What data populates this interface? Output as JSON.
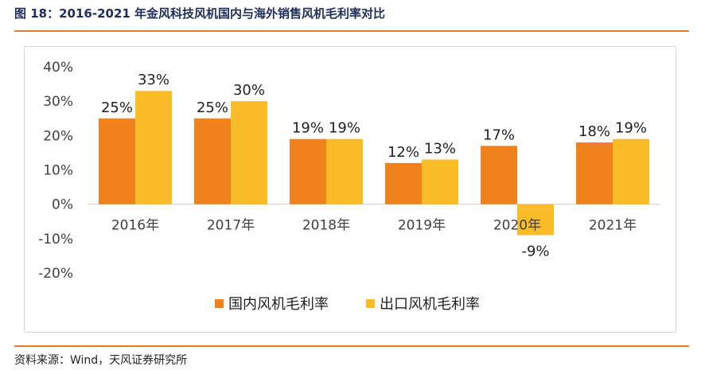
{
  "figure": {
    "title": "图 18：2016-2021 年金风科技风机国内与海外销售风机毛利率对比",
    "source": "资料来源：Wind，天风证券研究所"
  },
  "chart_data": {
    "type": "bar",
    "title": "",
    "xlabel": "",
    "ylabel": "",
    "categories": [
      "2016年",
      "2017年",
      "2018年",
      "2019年",
      "2020年",
      "2021年"
    ],
    "series": [
      {
        "name": "国内风机毛利率",
        "color": "#f0821e",
        "values": [
          25,
          25,
          19,
          12,
          17,
          18
        ],
        "labels": [
          "25%",
          "25%",
          "19%",
          "12%",
          "17%",
          "18%"
        ]
      },
      {
        "name": "出口风机毛利率",
        "color": "#fbbc2a",
        "values": [
          33,
          30,
          19,
          13,
          -9,
          19
        ],
        "labels": [
          "33%",
          "30%",
          "19%",
          "13%",
          "-9%",
          "19%"
        ]
      }
    ],
    "ylim": [
      -20,
      40
    ],
    "yticks": [
      40,
      30,
      20,
      10,
      0,
      -10,
      -20
    ],
    "ytick_labels": [
      "40%",
      "30%",
      "20%",
      "10%",
      "0%",
      "-10%",
      "-20%"
    ],
    "grid": false,
    "legend_position": "bottom"
  }
}
